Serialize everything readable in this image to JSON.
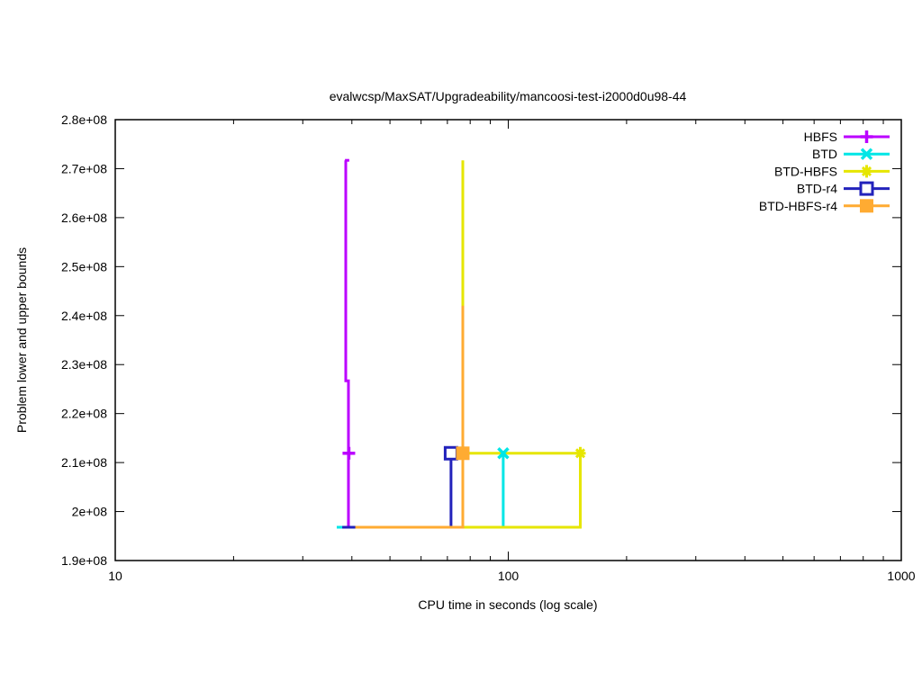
{
  "chart_data": {
    "type": "line",
    "title": "evalwcsp/MaxSAT/Upgradeability/mancoosi-test-i2000d0u98-44",
    "xlabel": "CPU time in seconds (log scale)",
    "ylabel": "Problem lower and upper bounds",
    "x_scale": "log",
    "xlim": [
      10,
      1000
    ],
    "ylim": [
      190000000,
      280000000
    ],
    "grid": false,
    "legend_position": "top-right-inside",
    "x_ticks": [
      {
        "v": 10,
        "label": "10"
      },
      {
        "v": 100,
        "label": "100"
      },
      {
        "v": 1000,
        "label": "1000"
      }
    ],
    "x_minor_ticks": [
      20,
      30,
      40,
      50,
      60,
      70,
      80,
      90,
      200,
      300,
      400,
      500,
      600,
      700,
      800,
      900
    ],
    "y_ticks": [
      {
        "v": 190000000,
        "label": "1.9e+08"
      },
      {
        "v": 200000000,
        "label": "2e+08"
      },
      {
        "v": 210000000,
        "label": "2.1e+08"
      },
      {
        "v": 220000000,
        "label": "2.2e+08"
      },
      {
        "v": 230000000,
        "label": "2.3e+08"
      },
      {
        "v": 240000000,
        "label": "2.4e+08"
      },
      {
        "v": 250000000,
        "label": "2.5e+08"
      },
      {
        "v": 260000000,
        "label": "2.6e+08"
      },
      {
        "v": 270000000,
        "label": "2.7e+08"
      },
      {
        "v": 280000000,
        "label": "2.8e+08"
      }
    ],
    "series": [
      {
        "name": "HBFS",
        "color": "#bb00ff",
        "marker": "plus",
        "lines": [
          [
            [
              38.4,
              271700000
            ],
            [
              39.4,
              271700000
            ]
          ],
          [
            [
              38.6,
              271700000
            ],
            [
              38.6,
              226700000
            ],
            [
              39.2,
              226700000
            ],
            [
              39.2,
              196800000
            ]
          ]
        ],
        "marker_at": [
          39.3,
          211900000
        ]
      },
      {
        "name": "BTD",
        "color": "#00e6e6",
        "marker": "cross",
        "lines": [
          [
            [
              36.6,
              196800000
            ],
            [
              97.1,
              196800000
            ],
            [
              97.1,
              211900000
            ]
          ]
        ],
        "marker_at": [
          97.1,
          211900000
        ]
      },
      {
        "name": "BTD-HBFS",
        "color": "#e6e600",
        "marker": "star",
        "lines": [
          [
            [
              76.6,
              271700000
            ],
            [
              76.6,
              211900000
            ],
            [
              152.5,
              211900000
            ]
          ],
          [
            [
              37.9,
              196800000
            ],
            [
              152.5,
              196800000
            ],
            [
              152.5,
              211900000
            ]
          ]
        ],
        "marker_at": [
          152.5,
          211900000
        ]
      },
      {
        "name": "BTD-r4",
        "color": "#2222bb",
        "marker": "square-open",
        "lines": [
          [
            [
              37.8,
              196800000
            ],
            [
              71.5,
              196800000
            ],
            [
              71.5,
              211900000
            ]
          ]
        ],
        "marker_at": [
          71.5,
          211900000
        ]
      },
      {
        "name": "BTD-HBFS-r4",
        "color": "#ffab32",
        "marker": "square-filled",
        "lines": [
          [
            [
              40.8,
              196800000
            ],
            [
              76.6,
              196800000
            ],
            [
              76.6,
              242000000
            ]
          ]
        ],
        "marker_at": [
          76.6,
          211900000
        ]
      }
    ]
  }
}
